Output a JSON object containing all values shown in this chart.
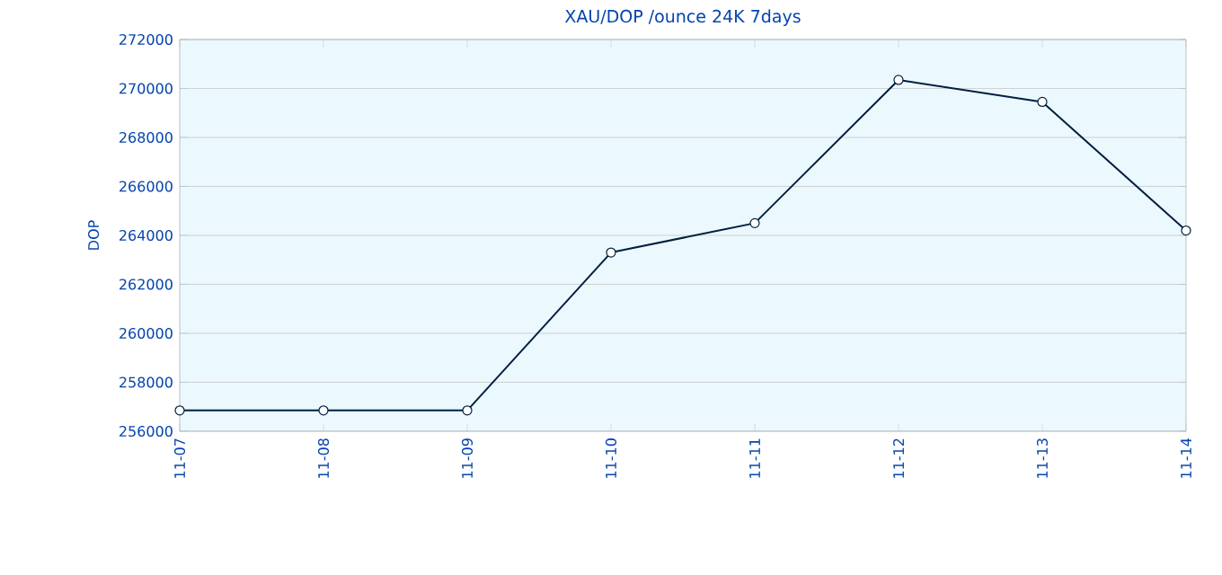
{
  "chart_data": {
    "type": "line",
    "title": "XAU/DOP /ounce 24K 7days",
    "ylabel": "DOP",
    "categories": [
      "11-07",
      "11-08",
      "11-09",
      "11-10",
      "11-11",
      "11-12",
      "11-13",
      "11-14"
    ],
    "series": [
      {
        "color": "#001f3f",
        "values": [
          256850,
          256850,
          256850,
          263300,
          264500,
          270350,
          269450,
          264200
        ]
      }
    ],
    "ylim": [
      256000,
      272000
    ],
    "yticks": [
      256000,
      258000,
      260000,
      262000,
      264000,
      266000,
      268000,
      270000,
      272000
    ],
    "grid": "y",
    "marker": "circle",
    "line_style": "solid"
  }
}
